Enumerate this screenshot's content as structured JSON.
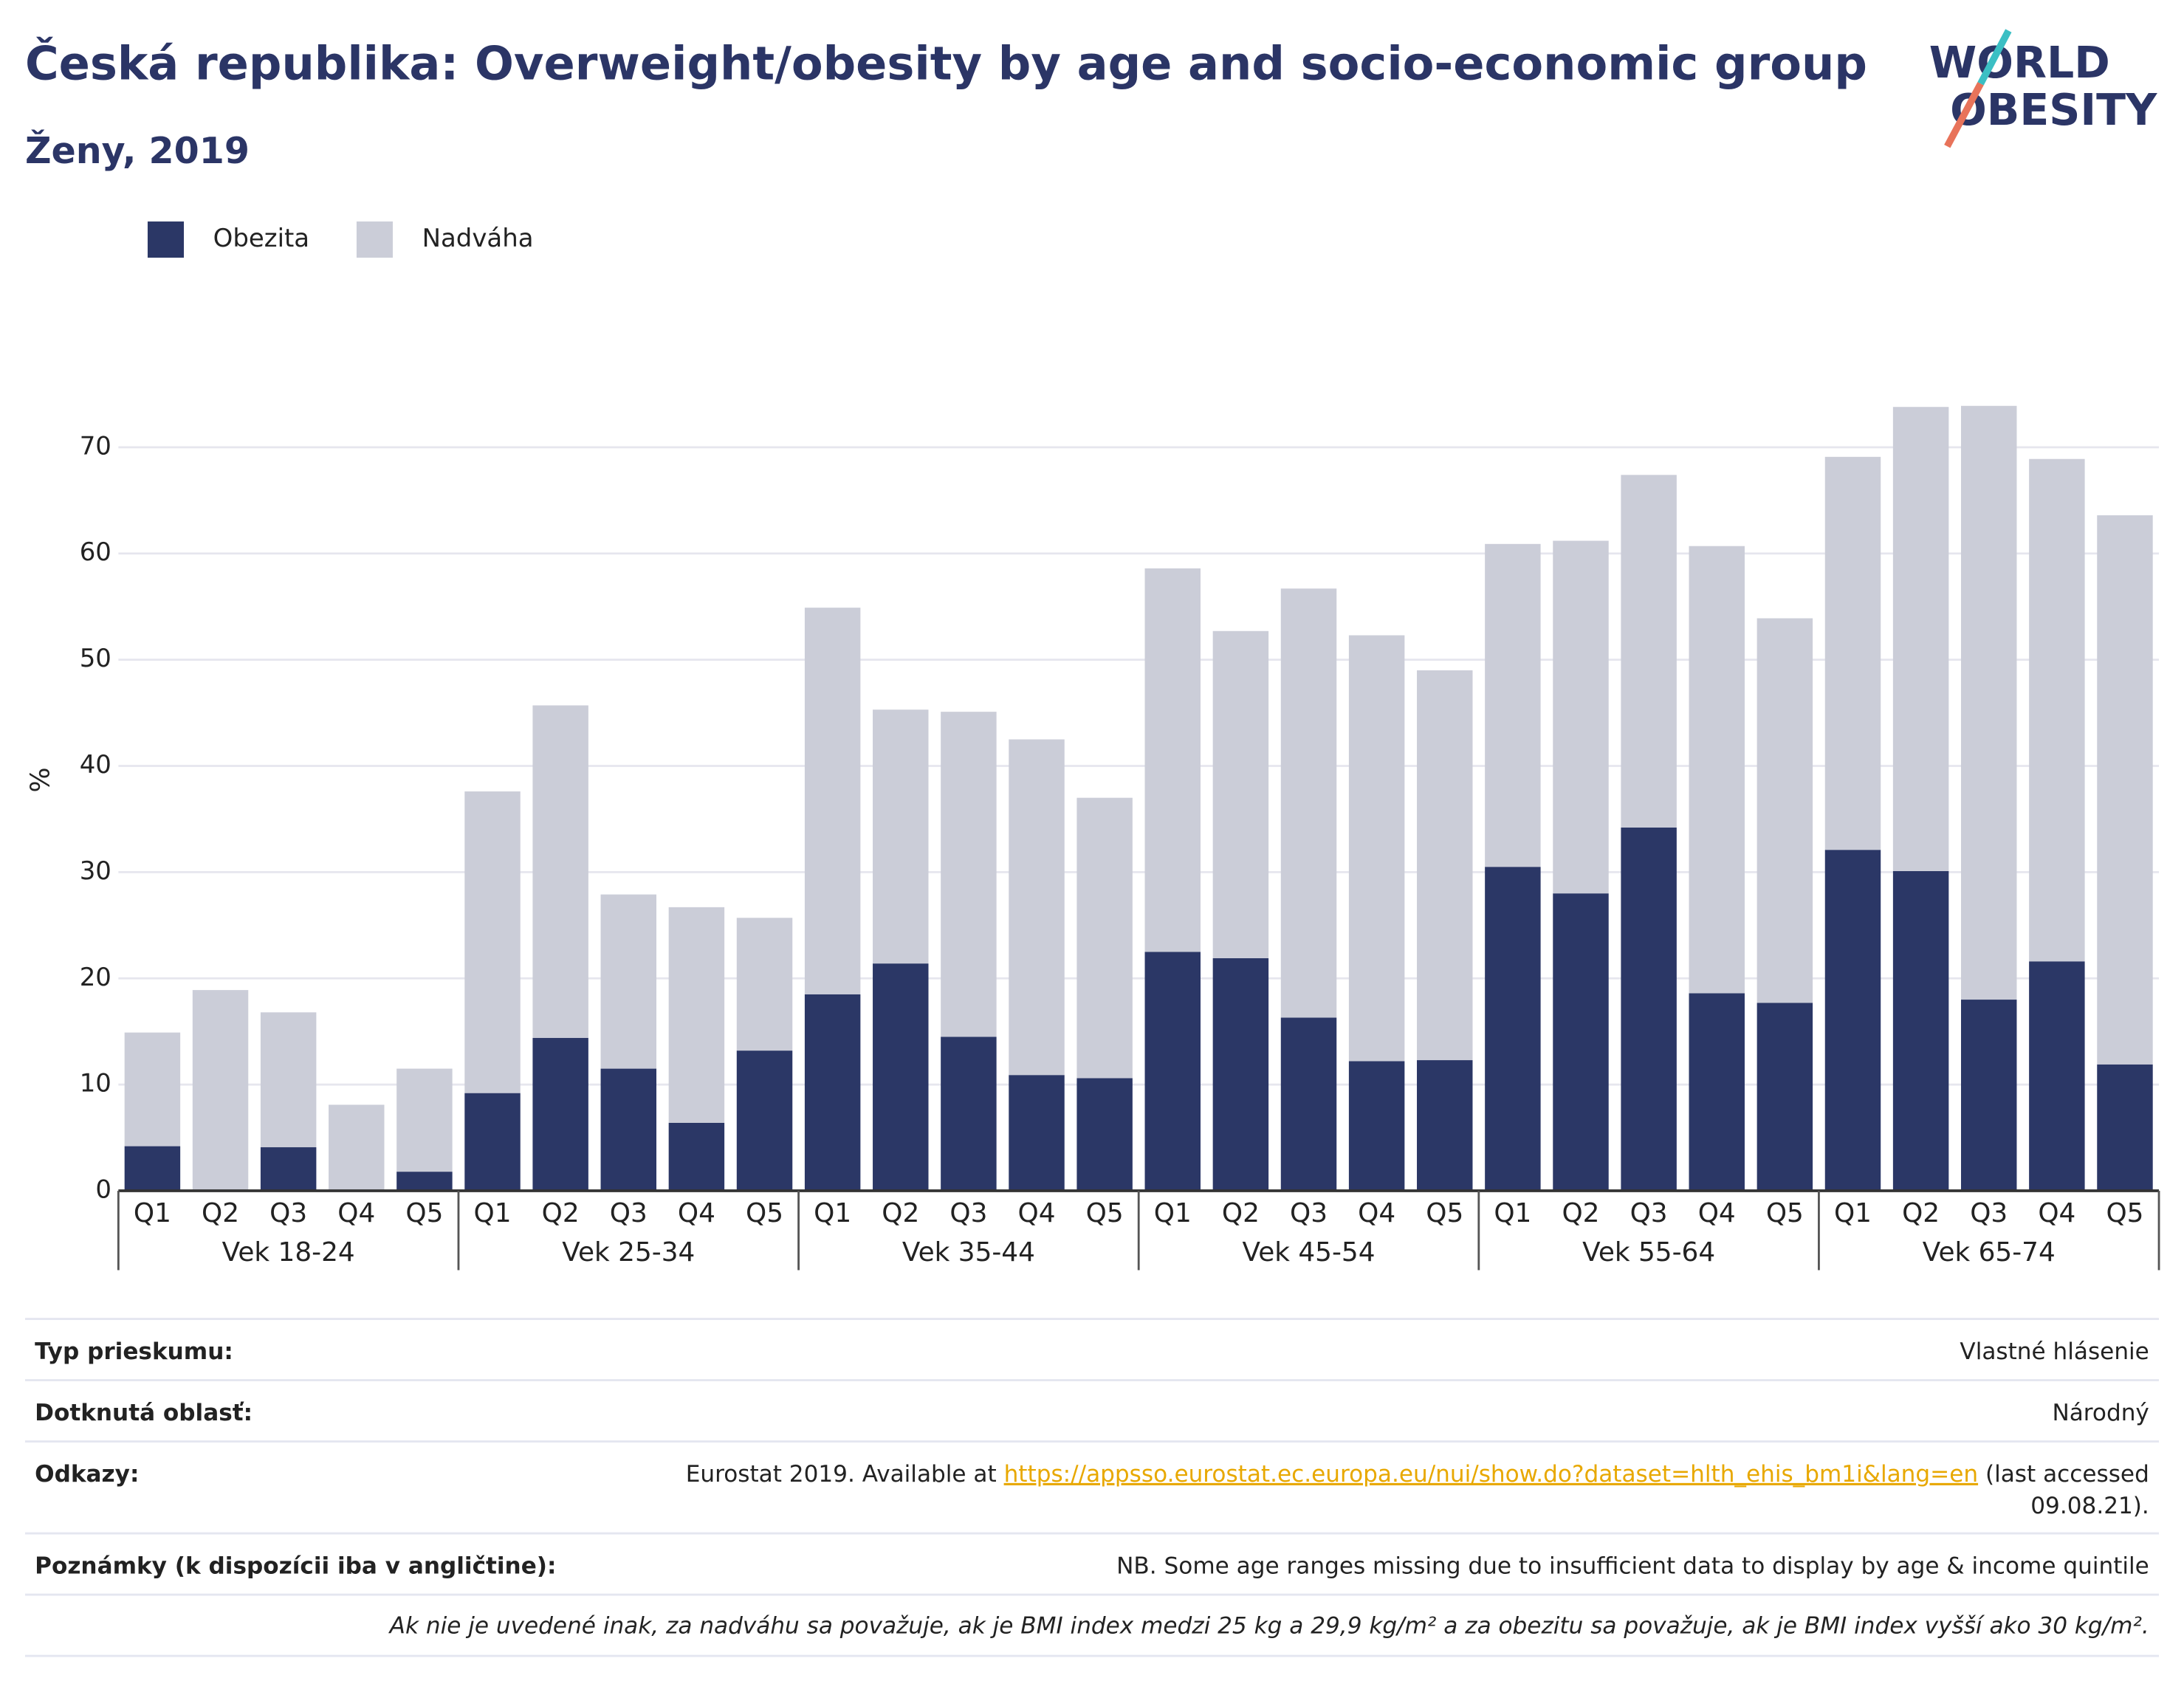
{
  "chart_data": {
    "type": "bar",
    "stacked": true,
    "title": "Česká republika: Overweight/obesity by age and socio-economic group",
    "subtitle": "Ženy, 2019",
    "y_label": "%",
    "categories": [
      "Q1",
      "Q2",
      "Q3",
      "Q4",
      "Q5",
      "Q1",
      "Q2",
      "Q3",
      "Q4",
      "Q5",
      "Q1",
      "Q2",
      "Q3",
      "Q4",
      "Q5",
      "Q1",
      "Q2",
      "Q3",
      "Q4",
      "Q5",
      "Q1",
      "Q2",
      "Q3",
      "Q4",
      "Q5",
      "Q1",
      "Q2",
      "Q3",
      "Q4",
      "Q5"
    ],
    "groups": [
      "Vek 18-24",
      "Vek 25-34",
      "Vek 35-44",
      "Vek 45-54",
      "Vek 55-64",
      "Vek 65-74"
    ],
    "series": [
      {
        "name": "Obezita",
        "color": "#2b3766",
        "values": [
          4.2,
          0,
          4.1,
          0,
          1.8,
          9.2,
          14.4,
          11.5,
          6.4,
          13.2,
          18.5,
          21.4,
          14.5,
          10.9,
          10.6,
          22.5,
          21.9,
          16.3,
          12.2,
          12.3,
          30.5,
          28.0,
          34.2,
          18.6,
          17.7,
          32.1,
          30.1,
          18.0,
          21.6,
          11.9
        ]
      },
      {
        "name": "Nadváha",
        "color": "#cbcdd8",
        "values": [
          10.7,
          18.9,
          12.7,
          8.1,
          9.7,
          28.4,
          31.3,
          16.4,
          20.3,
          12.5,
          36.4,
          23.9,
          30.6,
          31.6,
          26.4,
          36.1,
          30.8,
          40.4,
          40.1,
          36.7,
          30.4,
          33.2,
          33.2,
          42.1,
          36.2,
          37.0,
          43.7,
          55.9,
          47.3,
          51.7
        ]
      }
    ],
    "ylim": [
      0,
      75
    ],
    "yticks": [
      0,
      10,
      20,
      30,
      40,
      50,
      60,
      70
    ],
    "grid": true,
    "legend": "top-left"
  },
  "logo": {
    "line1": "WORLD",
    "line2": "OBESITY"
  },
  "footer": {
    "rows": [
      {
        "label": "Typ prieskumu:",
        "value": "Vlastné hlásenie"
      },
      {
        "label": "Dotknutá oblasť:",
        "value": "Národný"
      },
      {
        "label": "Odkazy:",
        "value_parts": {
          "before": "Eurostat 2019. Available at ",
          "link": "https://appsso.eurostat.ec.europa.eu/nui/show.do?dataset=hlth_ehis_bm1i&lang=en",
          "after": " (last accessed",
          "line2": "09.08.21)."
        }
      },
      {
        "label": "Poznámky (k dispozícii iba v angličtine):",
        "value": "NB. Some age ranges missing due to insufficient data to display by age & income quintile"
      }
    ],
    "note": "Ak nie je uvedené inak, za nadváhu sa považuje, ak je BMI index medzi 25 kg a 29,9 kg/m² a za obezitu sa považuje, ak je BMI index vyšší ako 30 kg/m²."
  }
}
